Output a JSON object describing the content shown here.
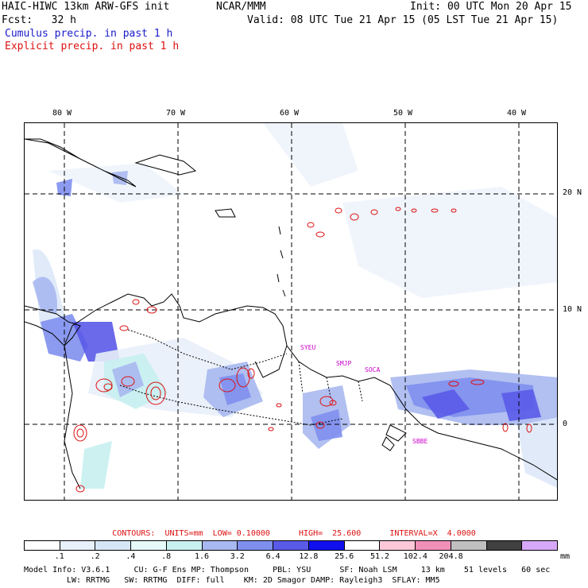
{
  "header": {
    "model": "HAIC-HIWC 13km ARW-GFS init",
    "org": "NCAR/MMM",
    "init": "Init: 00 UTC Mon 20 Apr 15",
    "fcst": "Fcst:   32 h",
    "valid": "Valid: 08 UTC Tue 21 Apr 15 (05 LST Tue 21 Apr 15)",
    "cumulus": "Cumulus precip. in past 1 h",
    "explicit": "Explicit precip. in past 1 h"
  },
  "lon_labels": [
    "80 W",
    "70 W",
    "60 W",
    "50 W",
    "40 W"
  ],
  "lat_labels": [
    "20 N",
    "10 N",
    "0"
  ],
  "stations": [
    "SYEU",
    "SMJP",
    "SOCA",
    "SBBE"
  ],
  "contours": "CONTOURS:  UNITS=mm  LOW= 0.10000      HIGH=  25.600      INTERVAL=X  4.0000",
  "colorbar": {
    "colors": [
      "#ffffff",
      "#e8f0fa",
      "#d7e6f7",
      "#e6fafa",
      "#c8f0f0",
      "#a8b8f0",
      "#7f8fee",
      "#5a5ae8",
      "#1010ee",
      "#ffffff",
      "#ffc8d8",
      "#f090b8",
      "#c0c0c0",
      "#404040",
      "#d8a8f8"
    ],
    "labels": [
      ".1",
      ".2",
      ".4",
      ".8",
      "1.6",
      "3.2",
      "6.4",
      "12.8",
      "25.6",
      "51.2",
      "102.4",
      "204.8"
    ],
    "unit": "mm"
  },
  "footer": {
    "line1": "Model Info: V3.6.1     CU: G-F Ens MP: Thompson     PBL: YSU      SF: Noah LSM     13 km    51 levels   60 sec",
    "line2": "LW: RRTMG   SW: RRTMG  DIFF: full    KM: 2D Smagor DAMP: Rayleigh3  SFLAY: MM5"
  }
}
